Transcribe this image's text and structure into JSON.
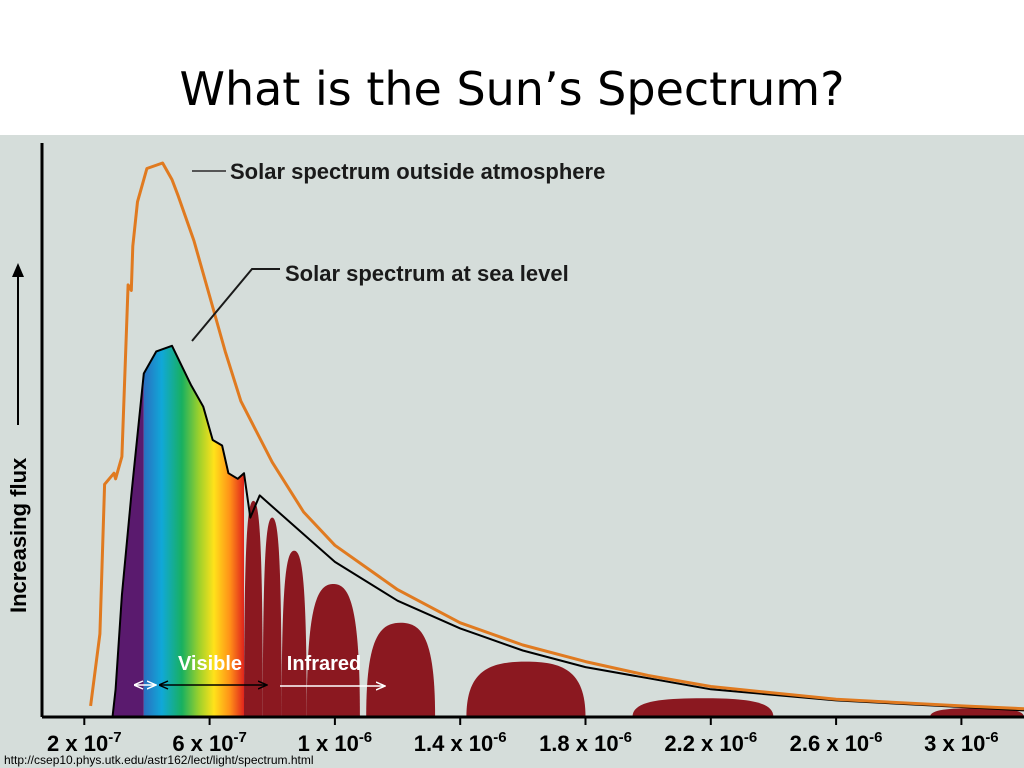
{
  "slide": {
    "title": "What is the Sun’s Spectrum?",
    "source_url": "http://csep10.phys.utk.edu/astr162/lect/light/spectrum.html"
  },
  "colors": {
    "background": "#d5ddda",
    "outside_atmosphere_curve": "#e07a20",
    "sea_level_curve": "#000000",
    "infrared_fill": "#8b1820",
    "ultraviolet_fill": "#5a1a6e",
    "visible_band": "rainbow gradient violet-blue-green-yellow-orange-red",
    "axis": "#000000",
    "band_label_text": "#ffffff"
  },
  "chart_data": {
    "type": "area",
    "title": "",
    "xlabel": "",
    "ylabel": "Increasing flux",
    "y_axis_has_numeric_ticks": false,
    "x_tick_labels": [
      {
        "mantissa": "2 x 10",
        "exponent": "-7",
        "value": 2e-07
      },
      {
        "mantissa": "6 x 10",
        "exponent": "-7",
        "value": 6e-07
      },
      {
        "mantissa": "1 x 10",
        "exponent": "-6",
        "value": 1e-06
      },
      {
        "mantissa": "1.4 x 10",
        "exponent": "-6",
        "value": 1.4e-06
      },
      {
        "mantissa": "1.8 x 10",
        "exponent": "-6",
        "value": 1.8e-06
      },
      {
        "mantissa": "2.2 x 10",
        "exponent": "-6",
        "value": 2.2e-06
      },
      {
        "mantissa": "2.6 x 10",
        "exponent": "-6",
        "value": 2.6e-06
      },
      {
        "mantissa": "3 x 10",
        "exponent": "-6",
        "value": 3e-06
      }
    ],
    "xlim": [
      6.5e-08,
      3.2e-06
    ],
    "ylim": [
      0,
      1.0
    ],
    "series": [
      {
        "name": "Solar spectrum outside atmosphere",
        "color": "#e07a20",
        "x": [
          2.2e-07,
          2.5e-07,
          2.65e-07,
          2.95e-07,
          3e-07,
          3.2e-07,
          3.4e-07,
          3.5e-07,
          3.55e-07,
          3.7e-07,
          4e-07,
          4.5e-07,
          4.8e-07,
          5e-07,
          5.5e-07,
          6e-07,
          6.5e-07,
          7e-07,
          8e-07,
          9e-07,
          1e-06,
          1.2e-06,
          1.4e-06,
          1.6e-06,
          1.8e-06,
          2e-06,
          2.2e-06,
          2.6e-06,
          3e-06,
          3.2e-06
        ],
        "y": [
          0.02,
          0.15,
          0.42,
          0.44,
          0.43,
          0.47,
          0.78,
          0.77,
          0.85,
          0.93,
          0.99,
          1.0,
          0.97,
          0.94,
          0.86,
          0.76,
          0.66,
          0.57,
          0.46,
          0.37,
          0.31,
          0.23,
          0.17,
          0.13,
          0.1,
          0.075,
          0.055,
          0.032,
          0.02,
          0.015
        ]
      },
      {
        "name": "Solar spectrum at sea level",
        "color": "#000000",
        "x": [
          2.9e-07,
          3e-07,
          3.2e-07,
          3.5e-07,
          3.9e-07,
          4.3e-07,
          4.8e-07,
          5.4e-07,
          5.8e-07,
          6.1e-07,
          6.4e-07,
          6.6e-07,
          6.9e-07,
          7.1e-07,
          7.3e-07,
          7.6e-07,
          8e-07,
          9e-07,
          1e-06,
          1.2e-06,
          1.4e-06,
          1.6e-06,
          1.8e-06,
          2e-06,
          2.2e-06,
          2.6e-06,
          3e-06,
          3.2e-06
        ],
        "y": [
          0.0,
          0.05,
          0.22,
          0.4,
          0.62,
          0.66,
          0.67,
          0.6,
          0.56,
          0.5,
          0.49,
          0.44,
          0.43,
          0.44,
          0.36,
          0.4,
          0.38,
          0.33,
          0.28,
          0.21,
          0.16,
          0.12,
          0.09,
          0.07,
          0.05,
          0.03,
          0.018,
          0.012
        ]
      }
    ],
    "band_labels": {
      "visible": "Visible",
      "infrared": "Infrared"
    },
    "visible_range": [
      3.9e-07,
      7.1e-07
    ],
    "ultraviolet_range": [
      2.9e-07,
      3.9e-07
    ],
    "absorption_lobes": [
      {
        "from": 7.1e-07,
        "to": 7.7e-07,
        "peak": 0.39
      },
      {
        "from": 7.7e-07,
        "to": 8.3e-07,
        "peak": 0.36
      },
      {
        "from": 8.3e-07,
        "to": 9.1e-07,
        "peak": 0.3
      },
      {
        "from": 9.1e-07,
        "to": 1.08e-06,
        "peak": 0.24
      },
      {
        "from": 1.1e-06,
        "to": 1.32e-06,
        "peak": 0.17
      },
      {
        "from": 1.42e-06,
        "to": 1.8e-06,
        "peak": 0.1
      },
      {
        "from": 1.95e-06,
        "to": 2.4e-06,
        "peak": 0.034
      },
      {
        "from": 2.9e-06,
        "to": 3.2e-06,
        "peak": 0.016
      }
    ],
    "annotations": [
      "Solar spectrum outside atmosphere",
      "Solar spectrum at sea level"
    ],
    "grid": false,
    "legend": "none (curves labelled by annotations at top-center)"
  }
}
